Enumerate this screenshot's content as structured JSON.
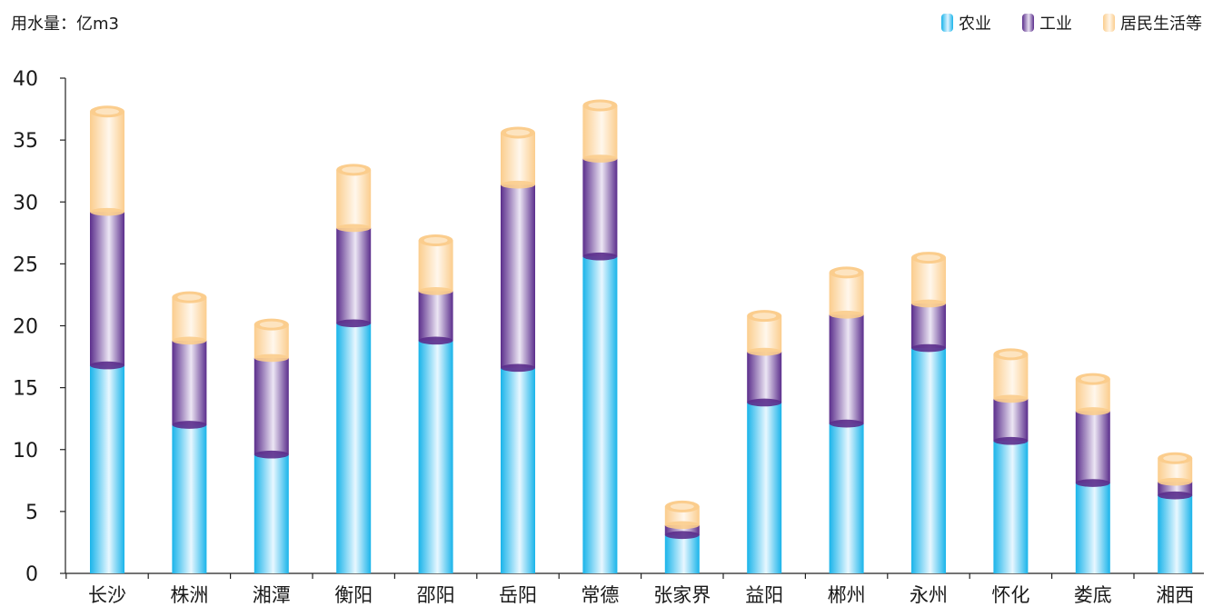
{
  "chart_data": {
    "type": "bar",
    "stacked": true,
    "ylabel": "用水量：亿m3",
    "ylim": [
      0,
      40
    ],
    "yticks": [
      0,
      5,
      10,
      15,
      20,
      25,
      30,
      35,
      40
    ],
    "grid": false,
    "legend_position": "top-right",
    "categories": [
      "长沙",
      "株洲",
      "湘潭",
      "衡阳",
      "邵阳",
      "岳阳",
      "常德",
      "张家界",
      "益阳",
      "郴州",
      "永州",
      "怀化",
      "娄底",
      "湘西"
    ],
    "series": [
      {
        "name": "农业",
        "color": "#19b4ea",
        "values": [
          16.8,
          12.0,
          9.6,
          20.2,
          18.8,
          16.6,
          25.6,
          3.1,
          13.8,
          12.1,
          18.2,
          10.7,
          7.3,
          6.3
        ]
      },
      {
        "name": "工业",
        "color": "#5b2e8c",
        "values": [
          12.4,
          6.8,
          7.8,
          7.7,
          4.0,
          14.8,
          7.9,
          0.8,
          4.1,
          8.8,
          3.6,
          3.4,
          5.8,
          1.1
        ]
      },
      {
        "name": "居民生活等",
        "color": "#fbcd8d",
        "values": [
          8.1,
          3.5,
          2.7,
          4.7,
          4.1,
          4.2,
          4.3,
          1.5,
          2.9,
          3.4,
          3.7,
          3.6,
          2.6,
          1.9
        ]
      }
    ]
  }
}
